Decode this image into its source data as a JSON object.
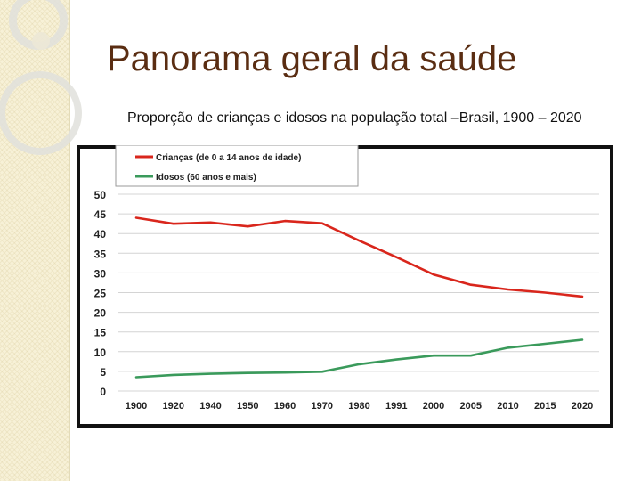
{
  "slide": {
    "title": "Panorama geral da saúde",
    "subtitle": "Proporção de crianças e idosos na população total –Brasil, 1900 – 2020"
  },
  "colors": {
    "title": "#5a2d12",
    "series_criancas": "#d9261c",
    "series_idosos": "#3a9a5b",
    "frame": "#111111",
    "grid": "#d4d4d4"
  },
  "chart_data": {
    "type": "line",
    "categories": [
      "1900",
      "1920",
      "1940",
      "1950",
      "1960",
      "1970",
      "1980",
      "1991",
      "2000",
      "2005",
      "2010",
      "2015",
      "2020"
    ],
    "series": [
      {
        "name": "Crianças (de 0 a 14 anos de idade)",
        "values": [
          44,
          42.5,
          42.8,
          41.8,
          43.2,
          42.6,
          38.2,
          34,
          29.6,
          27,
          25.8,
          25,
          24
        ]
      },
      {
        "name": "Idosos (60 anos e mais)",
        "values": [
          3.5,
          4.1,
          4.4,
          4.6,
          4.7,
          4.9,
          6.8,
          8,
          9,
          9,
          11,
          12,
          13
        ]
      }
    ],
    "yticks": [
      0,
      5,
      10,
      15,
      20,
      25,
      30,
      35,
      40,
      45,
      50
    ],
    "ylim": [
      0,
      50
    ],
    "grid": true,
    "legend": "top-left"
  }
}
